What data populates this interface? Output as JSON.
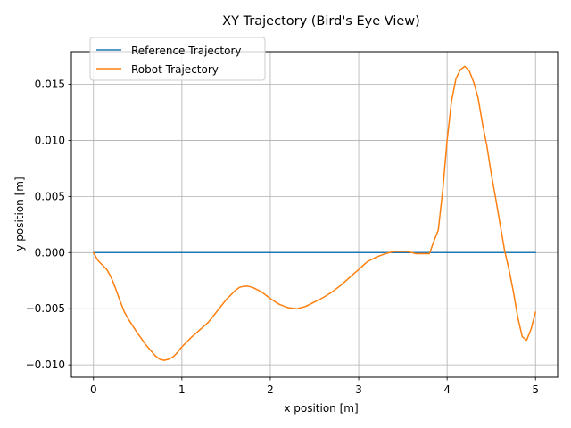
{
  "chart_data": {
    "type": "line",
    "title": "XY Trajectory (Bird's Eye View)",
    "xlabel": "x position [m]",
    "ylabel": "y position [m]",
    "xlim": [
      -0.25,
      5.25
    ],
    "ylim": [
      -0.0111,
      0.0179
    ],
    "xticks": [
      0,
      1,
      2,
      3,
      4,
      5
    ],
    "xtick_labels": [
      "0",
      "1",
      "2",
      "3",
      "4",
      "5"
    ],
    "yticks": [
      -0.01,
      -0.005,
      0.0,
      0.005,
      0.01,
      0.015
    ],
    "ytick_labels": [
      "−0.010",
      "−0.005",
      "0.000",
      "0.005",
      "0.010",
      "0.015"
    ],
    "grid": true,
    "legend_position": "top-left",
    "series": [
      {
        "name": "Reference Trajectory",
        "color": "#1f77b4",
        "x": [
          0,
          5
        ],
        "y": [
          0,
          0
        ]
      },
      {
        "name": "Robot Trajectory",
        "color": "#ff7f0e",
        "x": [
          0,
          0.05,
          0.1,
          0.15,
          0.2,
          0.25,
          0.3,
          0.35,
          0.4,
          0.5,
          0.6,
          0.7,
          0.75,
          0.8,
          0.85,
          0.9,
          0.95,
          1.0,
          1.1,
          1.2,
          1.3,
          1.4,
          1.5,
          1.6,
          1.65,
          1.7,
          1.75,
          1.8,
          1.9,
          2.0,
          2.1,
          2.2,
          2.3,
          2.4,
          2.5,
          2.6,
          2.7,
          2.8,
          2.9,
          3.0,
          3.1,
          3.2,
          3.3,
          3.4,
          3.5,
          3.55,
          3.6,
          3.65,
          3.7,
          3.8,
          3.85,
          3.9,
          3.95,
          4.0,
          4.05,
          4.1,
          4.15,
          4.2,
          4.25,
          4.3,
          4.35,
          4.4,
          4.45,
          4.5,
          4.55,
          4.6,
          4.65,
          4.7,
          4.75,
          4.8,
          4.85,
          4.9,
          4.95,
          5.0
        ],
        "y": [
          0.0,
          -0.0007,
          -0.0011,
          -0.0015,
          -0.0022,
          -0.0032,
          -0.0043,
          -0.0053,
          -0.006,
          -0.0072,
          -0.0083,
          -0.0092,
          -0.0095,
          -0.0096,
          -0.0095,
          -0.0093,
          -0.0089,
          -0.0084,
          -0.0076,
          -0.0069,
          -0.0062,
          -0.0052,
          -0.0042,
          -0.0034,
          -0.0031,
          -0.003,
          -0.003,
          -0.0031,
          -0.0035,
          -0.0041,
          -0.0046,
          -0.0049,
          -0.005,
          -0.0048,
          -0.0044,
          -0.004,
          -0.0035,
          -0.0029,
          -0.0022,
          -0.0015,
          -0.0008,
          -0.0004,
          -0.0001,
          0.0001,
          0.0001,
          0.0001,
          0.0,
          -0.0001,
          -0.0001,
          -0.0001,
          0.001,
          0.002,
          0.0055,
          0.01,
          0.0135,
          0.0155,
          0.0163,
          0.0166,
          0.0162,
          0.0152,
          0.0138,
          0.0115,
          0.0095,
          0.007,
          0.0048,
          0.0025,
          0.0002,
          -0.0015,
          -0.0035,
          -0.0058,
          -0.0075,
          -0.0078,
          -0.0068,
          -0.0053
        ]
      }
    ]
  }
}
